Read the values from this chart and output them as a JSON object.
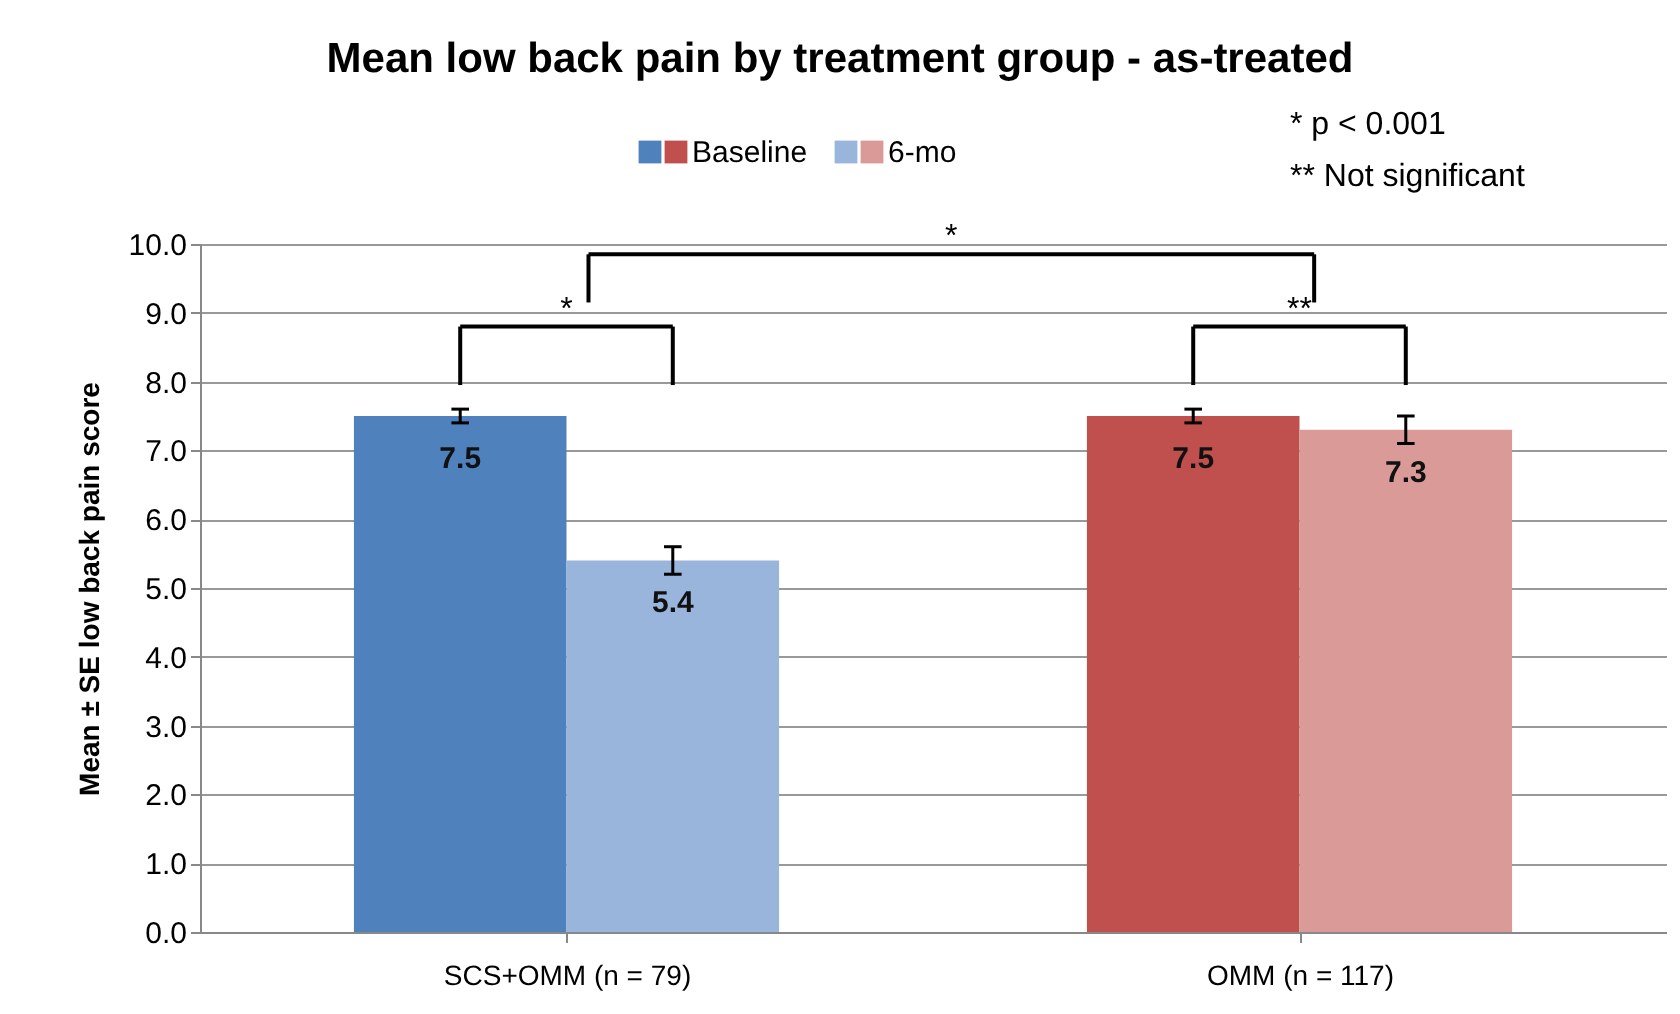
{
  "chart_data": {
    "type": "bar",
    "title": "Mean low back pain by treatment group - as-treated",
    "ylabel": "Mean ± SE low back pain score",
    "categories": [
      "SCS+OMM (n = 79)",
      "OMM (n = 117)"
    ],
    "series": [
      {
        "name": "Baseline",
        "colors": [
          "#4f81bd",
          "#c0504d"
        ],
        "values": [
          7.5,
          7.5
        ],
        "errors": [
          0.1,
          0.1
        ]
      },
      {
        "name": "6-mo",
        "colors": [
          "#9ab5db",
          "#d99a98"
        ],
        "values": [
          5.4,
          7.3
        ],
        "errors": [
          0.2,
          0.2
        ]
      }
    ],
    "ylim": [
      0,
      10
    ],
    "yticks": [
      {
        "value": 0,
        "label": "0.0"
      },
      {
        "value": 1,
        "label": "1.0"
      },
      {
        "value": 2,
        "label": "2.0"
      },
      {
        "value": 3,
        "label": "3.0"
      },
      {
        "value": 4,
        "label": "4.0"
      },
      {
        "value": 5,
        "label": "5.0"
      },
      {
        "value": 6,
        "label": "6.0"
      },
      {
        "value": 7,
        "label": "7.0"
      },
      {
        "value": 8,
        "label": "8.0"
      },
      {
        "value": 9,
        "label": "9.0"
      },
      {
        "value": 10,
        "label": "10.0"
      }
    ],
    "grid": "y",
    "legend": "top",
    "data_labels": true,
    "annotations": [
      "*",
      "**",
      "*",
      "* p < 0.001",
      "** Not significant"
    ]
  }
}
